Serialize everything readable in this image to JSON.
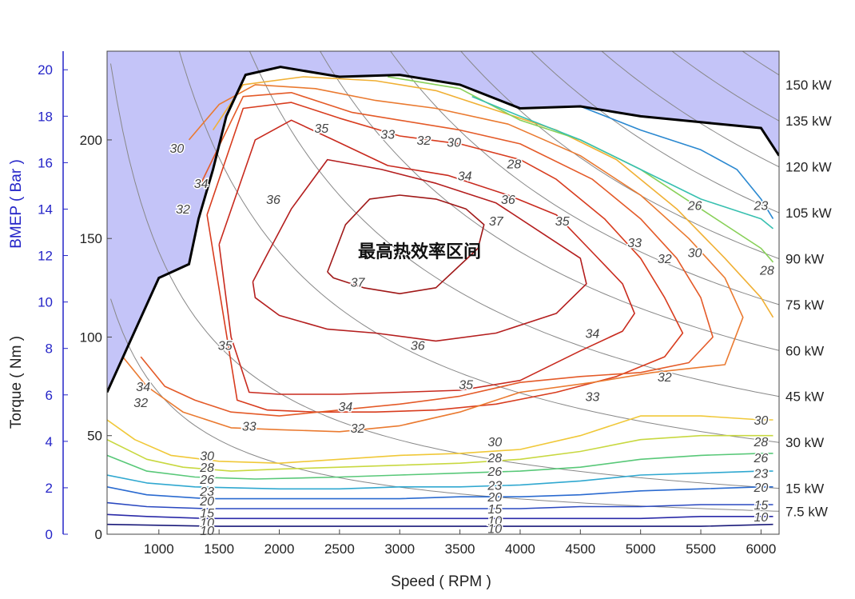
{
  "chart_data": {
    "type": "contour",
    "xlabel": "Speed ( RPM )",
    "ylabel_left_outer": "BMEP ( Bar )",
    "ylabel_left_inner": "Torque ( Nm )",
    "xlim": [
      570,
      6150
    ],
    "ylim_torque": [
      0,
      245
    ],
    "ylim_bmep": [
      0,
      20.8
    ],
    "x_ticks": [
      1000,
      1500,
      2000,
      2500,
      3000,
      3500,
      4000,
      4500,
      5000,
      5500,
      6000
    ],
    "torque_ticks": [
      0,
      50,
      100,
      150,
      200
    ],
    "bmep_ticks": [
      0,
      2,
      4,
      6,
      8,
      10,
      12,
      14,
      16,
      18,
      20
    ],
    "power_labels": [
      "150 kW",
      "135 kW",
      "120 kW",
      "105 kW",
      "90 kW",
      "75 kW",
      "60 kW",
      "45 kW",
      "30 kW",
      "15 kW",
      "7.5 kW"
    ],
    "power_lines_kw": [
      7.5,
      15,
      30,
      45,
      60,
      75,
      90,
      105,
      120,
      135,
      150
    ],
    "annotation": "最高热效率区间",
    "max_torque_curve": {
      "rpm": [
        570,
        1000,
        1250,
        1330,
        1450,
        1560,
        1720,
        2010,
        2500,
        3000,
        3500,
        4000,
        4500,
        5000,
        5500,
        6000,
        6150
      ],
      "torque": [
        72,
        130,
        137,
        160,
        185,
        212,
        233,
        237,
        232,
        233,
        228,
        216,
        217,
        212,
        209,
        206,
        192
      ]
    },
    "efficiency_contours": [
      {
        "level": "37",
        "color": "#a01818",
        "rpm": [
          2400,
          2550,
          2750,
          3000,
          3300,
          3550,
          3700,
          3650,
          3300,
          3000,
          2700,
          2450,
          2400
        ],
        "torque": [
          133,
          157,
          170,
          172,
          170,
          165,
          157,
          145,
          125,
          122,
          125,
          130,
          133
        ]
      },
      {
        "level": "36",
        "color": "#b41e1e",
        "rpm": [
          1780,
          1900,
          2100,
          2400,
          2850,
          3300,
          3800,
          4200,
          4500,
          4550,
          4300,
          3800,
          3300,
          2800,
          2400,
          2000,
          1800,
          1780
        ],
        "torque": [
          128,
          142,
          165,
          190,
          185,
          178,
          168,
          152,
          140,
          127,
          112,
          102,
          98,
          102,
          104,
          111,
          120,
          128
        ]
      },
      {
        "level": "35",
        "color": "#c82a1e",
        "rpm": [
          1500,
          1800,
          2100,
          2450,
          2900,
          3400,
          3900,
          4300,
          4600,
          4850,
          4950,
          4850,
          4500,
          4000,
          3500,
          3000,
          2500,
          2000,
          1750,
          1600,
          1500
        ],
        "torque": [
          147,
          200,
          210,
          200,
          187,
          182,
          172,
          162,
          143,
          127,
          112,
          103,
          93,
          78,
          73,
          72,
          71,
          71,
          72,
          100,
          147
        ]
      },
      {
        "level": "34",
        "color": "#d83c1e",
        "rpm": [
          1400,
          1700,
          2100,
          2500,
          3000,
          3500,
          4000,
          4300,
          4700,
          5000,
          5200,
          5350,
          5200,
          4800,
          4300,
          3800,
          3300,
          2800,
          2300,
          1900,
          1650,
          1400
        ],
        "torque": [
          162,
          216,
          219,
          211,
          202,
          198,
          190,
          180,
          160,
          140,
          120,
          102,
          90,
          80,
          72,
          66,
          63,
          62,
          62,
          63,
          68,
          162
        ]
      },
      {
        "level": "33",
        "color": "#e45a28",
        "rpm": [
          1350,
          1700,
          2100,
          2600,
          3000,
          3500,
          4000,
          4600,
          5000,
          5300,
          5500,
          5600,
          5400,
          5000,
          4500,
          4000,
          3500,
          3000,
          2500,
          2000,
          1600,
          1300,
          1050,
          850
        ],
        "torque": [
          178,
          222,
          224,
          214,
          210,
          205,
          198,
          180,
          160,
          140,
          120,
          100,
          87,
          82,
          80,
          77,
          70,
          66,
          63,
          60,
          62,
          68,
          75,
          90
        ]
      },
      {
        "level": "32",
        "color": "#ea7a30",
        "rpm": [
          1250,
          1500,
          1800,
          2300,
          2800,
          3300,
          3900,
          4500,
          5000,
          5400,
          5700,
          5850,
          5700,
          5100,
          4600,
          4000,
          3500,
          3000,
          2500,
          2000,
          1600,
          1200,
          900,
          700
        ],
        "torque": [
          200,
          218,
          228,
          226,
          220,
          216,
          208,
          192,
          172,
          150,
          130,
          110,
          86,
          82,
          77,
          72,
          62,
          55,
          52,
          53,
          54,
          62,
          75,
          90
        ]
      },
      {
        "level": "30",
        "color": "#f0b034",
        "rpm": [
          1450,
          1700,
          2200,
          2800,
          3300,
          3800,
          4300,
          4800,
          5300,
          5700,
          6000,
          6100
        ],
        "torque": [
          205,
          228,
          232,
          230,
          225,
          215,
          205,
          190,
          165,
          140,
          120,
          110
        ]
      },
      {
        "level": "30",
        "color": "#f0c838",
        "rpm": [
          570,
          800,
          1100,
          1500,
          2000,
          2500,
          3000,
          3500,
          4000,
          4500,
          5000,
          5500,
          6000,
          6100
        ],
        "torque": [
          58,
          48,
          40,
          37,
          36,
          38,
          40,
          41,
          43,
          50,
          60,
          60,
          58,
          58
        ]
      },
      {
        "level": "28",
        "color": "#c8d840",
        "rpm": [
          570,
          900,
          1200,
          1600,
          2000,
          2500,
          3000,
          3500,
          4000,
          4500,
          5000,
          5500,
          6000,
          6100
        ],
        "torque": [
          48,
          38,
          34,
          32,
          33,
          34,
          35,
          36,
          38,
          42,
          48,
          50,
          50,
          50
        ]
      },
      {
        "level": "28",
        "color": "#88d058",
        "rpm": [
          2900,
          3500,
          4000,
          4500,
          5000,
          5500,
          6000,
          6100
        ],
        "torque": [
          232,
          226,
          210,
          200,
          185,
          165,
          145,
          138
        ]
      },
      {
        "level": "26",
        "color": "#58c878",
        "rpm": [
          570,
          900,
          1300,
          1800,
          2500,
          3000,
          3500,
          4000,
          4500,
          5000,
          5500,
          6000,
          6100
        ],
        "torque": [
          40,
          32,
          29,
          28,
          29,
          30,
          31,
          32,
          34,
          38,
          40,
          41,
          41
        ]
      },
      {
        "level": "26",
        "color": "#38c0b0",
        "rpm": [
          3600,
          4000,
          4500,
          5000,
          5500,
          6000,
          6100
        ],
        "torque": [
          222,
          212,
          200,
          185,
          170,
          160,
          155
        ]
      },
      {
        "level": "23",
        "color": "#30a8d0",
        "rpm": [
          570,
          900,
          1300,
          2000,
          2500,
          3000,
          3500,
          4000,
          4500,
          5000,
          5500,
          6000,
          6100
        ],
        "torque": [
          30,
          26,
          24,
          23,
          23,
          24,
          24,
          25,
          27,
          30,
          31,
          32,
          32
        ]
      },
      {
        "level": "23",
        "color": "#2a88d0",
        "rpm": [
          4500,
          5000,
          5500,
          5800,
          6000,
          6100
        ],
        "torque": [
          217,
          205,
          195,
          185,
          170,
          160
        ]
      },
      {
        "level": "20",
        "color": "#2a6ad0",
        "rpm": [
          570,
          900,
          1400,
          2000,
          2500,
          3000,
          3500,
          4000,
          4500,
          5000,
          5500,
          6000,
          6100
        ],
        "torque": [
          24,
          20,
          18,
          18,
          18,
          18,
          19,
          19,
          20,
          22,
          23,
          24,
          24
        ]
      },
      {
        "level": "15",
        "color": "#2a48c0",
        "rpm": [
          570,
          900,
          1400,
          2000,
          2500,
          3000,
          3500,
          4000,
          4500,
          5000,
          5500,
          6000,
          6100
        ],
        "torque": [
          16,
          14,
          13,
          13,
          13,
          13,
          13,
          13,
          14,
          14,
          15,
          15,
          15
        ]
      },
      {
        "level": "10",
        "color": "#2a2aa8",
        "rpm": [
          570,
          900,
          1400,
          2000,
          2500,
          3000,
          3500,
          4000,
          4500,
          5000,
          5500,
          6000,
          6100
        ],
        "torque": [
          10,
          9,
          8,
          8,
          8,
          8,
          8,
          8,
          8,
          8,
          9,
          9,
          9
        ]
      },
      {
        "level": "",
        "color": "#1a1a7a",
        "rpm": [
          570,
          1500,
          2500,
          3500,
          4500,
          5500,
          6100
        ],
        "torque": [
          5,
          4,
          4,
          4,
          4,
          4,
          5
        ]
      }
    ],
    "contour_labels": [
      {
        "text": "35",
        "rpm": 2350,
        "torque": 206,
        "color": "#c82a1e"
      },
      {
        "text": "33",
        "rpm": 2900,
        "torque": 203,
        "color": "#e45a28"
      },
      {
        "text": "32",
        "rpm": 3200,
        "torque": 200,
        "color": "#ea7a30"
      },
      {
        "text": "30",
        "rpm": 3450,
        "torque": 199,
        "color": "#f0b034"
      },
      {
        "text": "34",
        "rpm": 3540,
        "torque": 182,
        "color": "#d83c1e"
      },
      {
        "text": "28",
        "rpm": 3950,
        "torque": 188,
        "color": "#88d058"
      },
      {
        "text": "36",
        "rpm": 3900,
        "torque": 170,
        "color": "#b41e1e"
      },
      {
        "text": "37",
        "rpm": 3800,
        "torque": 159,
        "color": "#a01818"
      },
      {
        "text": "35",
        "rpm": 4350,
        "torque": 159,
        "color": "#c82a1e"
      },
      {
        "text": "33",
        "rpm": 4950,
        "torque": 148,
        "color": "#e45a28"
      },
      {
        "text": "32",
        "rpm": 5200,
        "torque": 140,
        "color": "#ea7a30"
      },
      {
        "text": "30",
        "rpm": 5450,
        "torque": 143,
        "color": "#f0b034"
      },
      {
        "text": "26",
        "rpm": 5450,
        "torque": 167,
        "color": "#38c0b0"
      },
      {
        "text": "23",
        "rpm": 6000,
        "torque": 167,
        "color": "#2a88d0"
      },
      {
        "text": "28",
        "rpm": 6050,
        "torque": 134,
        "color": "#88d058"
      },
      {
        "text": "30",
        "rpm": 1150,
        "torque": 196,
        "color": "#f0b034"
      },
      {
        "text": "34",
        "rpm": 1350,
        "torque": 178,
        "color": "#d83c1e"
      },
      {
        "text": "32",
        "rpm": 1200,
        "torque": 165,
        "color": "#ea7a30"
      },
      {
        "text": "36",
        "rpm": 1950,
        "torque": 170,
        "color": "#b41e1e"
      },
      {
        "text": "37",
        "rpm": 2650,
        "torque": 128,
        "color": "#a01818"
      },
      {
        "text": "35",
        "rpm": 1550,
        "torque": 96,
        "color": "#c82a1e"
      },
      {
        "text": "36",
        "rpm": 3150,
        "torque": 96,
        "color": "#b41e1e"
      },
      {
        "text": "34",
        "rpm": 4600,
        "torque": 102,
        "color": "#d83c1e"
      },
      {
        "text": "32",
        "rpm": 5200,
        "torque": 80,
        "color": "#ea7a30"
      },
      {
        "text": "35",
        "rpm": 3550,
        "torque": 76,
        "color": "#c82a1e"
      },
      {
        "text": "33",
        "rpm": 4600,
        "torque": 70,
        "color": "#e45a28"
      },
      {
        "text": "34",
        "rpm": 2550,
        "torque": 65,
        "color": "#d83c1e"
      },
      {
        "text": "34",
        "rpm": 870,
        "torque": 75,
        "color": "#d83c1e"
      },
      {
        "text": "32",
        "rpm": 850,
        "torque": 67,
        "color": "#ea7a30"
      },
      {
        "text": "33",
        "rpm": 1750,
        "torque": 55,
        "color": "#e45a28"
      },
      {
        "text": "32",
        "rpm": 2650,
        "torque": 54,
        "color": "#ea7a30"
      },
      {
        "text": "30",
        "rpm": 3790,
        "torque": 47,
        "color": "#f0c838"
      },
      {
        "text": "30",
        "rpm": 6000,
        "torque": 58,
        "color": "#f0c838"
      },
      {
        "text": "28",
        "rpm": 6000,
        "torque": 47,
        "color": "#c8d840"
      },
      {
        "text": "26",
        "rpm": 6000,
        "torque": 39,
        "color": "#58c878"
      },
      {
        "text": "23",
        "rpm": 6000,
        "torque": 31,
        "color": "#30a8d0"
      },
      {
        "text": "20",
        "rpm": 6000,
        "torque": 24,
        "color": "#2a6ad0"
      },
      {
        "text": "15",
        "rpm": 6000,
        "torque": 15,
        "color": "#2a48c0"
      },
      {
        "text": "10",
        "rpm": 6000,
        "torque": 9,
        "color": "#2a2aa8"
      },
      {
        "text": "30",
        "rpm": 1400,
        "torque": 40,
        "color": "#f0c838"
      },
      {
        "text": "28",
        "rpm": 1400,
        "torque": 34,
        "color": "#c8d840"
      },
      {
        "text": "26",
        "rpm": 1400,
        "torque": 28,
        "color": "#58c878"
      },
      {
        "text": "23",
        "rpm": 1400,
        "torque": 22,
        "color": "#30a8d0"
      },
      {
        "text": "20",
        "rpm": 1400,
        "torque": 17,
        "color": "#2a6ad0"
      },
      {
        "text": "15",
        "rpm": 1400,
        "torque": 11,
        "color": "#2a48c0"
      },
      {
        "text": "10",
        "rpm": 1400,
        "torque": 6,
        "color": "#2a2aa8"
      },
      {
        "text": "10",
        "rpm": 1400,
        "torque": 2,
        "color": "#1a1a7a"
      },
      {
        "text": "28",
        "rpm": 3790,
        "torque": 39,
        "color": "#c8d840"
      },
      {
        "text": "26",
        "rpm": 3790,
        "torque": 32,
        "color": "#58c878"
      },
      {
        "text": "23",
        "rpm": 3790,
        "torque": 25,
        "color": "#30a8d0"
      },
      {
        "text": "20",
        "rpm": 3790,
        "torque": 19,
        "color": "#2a6ad0"
      },
      {
        "text": "15",
        "rpm": 3790,
        "torque": 13,
        "color": "#2a48c0"
      },
      {
        "text": "10",
        "rpm": 3790,
        "torque": 7,
        "color": "#2a2aa8"
      },
      {
        "text": "10",
        "rpm": 3790,
        "torque": 3,
        "color": "#1a1a7a"
      }
    ],
    "colors": {
      "unreachable_region": "#c4c4f8",
      "power_lines": "#888888",
      "max_torque_line": "#000000",
      "bmep_axis": "#2525c8"
    }
  }
}
